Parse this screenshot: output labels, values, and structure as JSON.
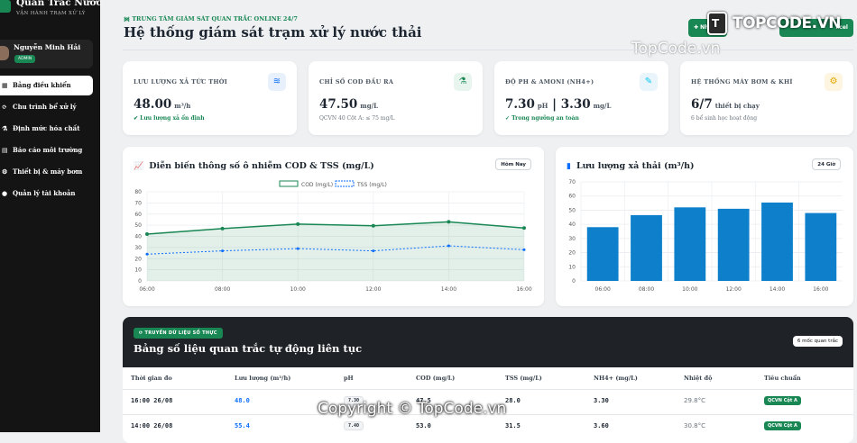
{
  "sidebar": {
    "brand_title": "Quan Trắc Nước",
    "brand_subtitle": "VẬN HÀNH TRẠM XỬ LÝ",
    "user_name": "Nguyễn Minh Hải",
    "user_role": "ADMIN",
    "items": [
      {
        "icon": "dashboard-icon",
        "label": "Bảng điều khiển"
      },
      {
        "icon": "process-icon",
        "label": "Chu trình bể xử lý"
      },
      {
        "icon": "chemical-icon",
        "label": "Định mức hóa chất"
      },
      {
        "icon": "report-icon",
        "label": "Báo cáo môi trường"
      },
      {
        "icon": "pump-icon",
        "label": "Thiết bị & máy bơm"
      },
      {
        "icon": "account-icon",
        "label": "Quản lý tài khoản"
      }
    ]
  },
  "header": {
    "subtitle": "TRUNG TÂM GIÁM SÁT QUAN TRẮC ONLINE 24/7",
    "title": "Hệ thống giám sát trạm xử lý nước thải",
    "button_import": "Nhập S",
    "button_export": "xcel"
  },
  "watermark": {
    "logo_text": "TOPCODE.VN",
    "mark": "T",
    "site": "TopCode.vn",
    "copyright": "Copyright © TopCode.vn"
  },
  "kpis": [
    {
      "label": "LƯU LƯỢNG XẢ TỨC THỜI",
      "value": "48.00",
      "unit": "m³/h",
      "footer": "Lưu lượng xả ổn định",
      "footer_icon": "✔",
      "icon": "flow-icon",
      "accent": "#e7f0fb",
      "accent_fg": "#0d6efd"
    },
    {
      "label": "CHỈ SỐ COD ĐẦU RA",
      "value": "47.50",
      "unit": "mg/L",
      "footer": "QCVN 40 Cột A: ≤ 75 mg/L",
      "footer_icon": "",
      "icon": "flask-icon",
      "accent": "#e8f5ee",
      "accent_fg": "#198754"
    },
    {
      "label": "ĐỘ PH & AMONI (NH4+)",
      "value": "7.30",
      "value2_sep": "|",
      "value2": "3.30",
      "unit_a": "pH",
      "unit": "mg/L",
      "footer": "Trong ngưỡng an toàn",
      "footer_icon": "✓",
      "icon": "dropper-icon",
      "accent": "#eaf4fb",
      "accent_fg": "#0dcaf0"
    },
    {
      "label": "HỆ THỐNG MÁY BƠM & KHÍ",
      "value": "6/7",
      "unit": "thiết bị chạy",
      "footer": "6 bể sinh học hoạt động",
      "footer_icon": "",
      "icon": "gears-icon",
      "accent": "#fdf5e0",
      "accent_fg": "#e0a800"
    }
  ],
  "line_chart_title": "Diễn biến thông số ô nhiễm COD & TSS (mg/L)",
  "line_chart_pill": "Hôm Nay",
  "bar_chart_title": "Lưu lượng xả thải (m³/h)",
  "bar_chart_pill": "24 Giờ",
  "chart_data": [
    {
      "type": "line",
      "x": [
        "06:00",
        "08:00",
        "10:00",
        "12:00",
        "14:00",
        "16:00"
      ],
      "series": [
        {
          "name": "COD (mg/L)",
          "values": [
            42,
            47,
            51,
            49.5,
            53,
            47.5
          ],
          "color": "#198754",
          "fill": true
        },
        {
          "name": "TSS (mg/L)",
          "values": [
            24,
            27,
            29,
            27,
            31.5,
            28
          ],
          "color": "#0d6efd",
          "dashed": true
        }
      ],
      "ylim": [
        0,
        80
      ],
      "yticks": [
        0,
        10,
        20,
        30,
        40,
        50,
        60,
        70,
        80
      ],
      "legend": "top-center",
      "grid": true
    },
    {
      "type": "bar",
      "categories": [
        "06:00",
        "08:00",
        "10:00",
        "12:00",
        "14:00",
        "16:00"
      ],
      "values": [
        38,
        46.5,
        52,
        51,
        55.4,
        48
      ],
      "color": "#0d7fcb",
      "ylim": [
        0,
        70
      ],
      "yticks": [
        0,
        10,
        20,
        30,
        40,
        50,
        60,
        70
      ],
      "grid": true
    }
  ],
  "table": {
    "badge": "TRUYỀN DỮ LIỆU SỐ THỰC",
    "title": "Bảng số liệu quan trắc tự động liên tục",
    "count": "6 mốc quan trắc",
    "headers": [
      "Thời gian đo",
      "Lưu lượng (m³/h)",
      "pH",
      "COD (mg/L)",
      "TSS (mg/L)",
      "NH4+ (mg/L)",
      "Nhiệt độ",
      "Tiêu chuẩn"
    ],
    "rows": [
      {
        "time": "16:00 26/08",
        "flow": "48.0",
        "ph": "7.30",
        "cod": "47.5",
        "tss": "28.0",
        "nh4": "3.30",
        "temp": "29.8°C",
        "std": "QCVN Cột A"
      },
      {
        "time": "14:00 26/08",
        "flow": "55.4",
        "ph": "7.40",
        "cod": "53.0",
        "tss": "31.5",
        "nh4": "3.60",
        "temp": "30.8°C",
        "std": "QCVN Cột A"
      }
    ]
  }
}
